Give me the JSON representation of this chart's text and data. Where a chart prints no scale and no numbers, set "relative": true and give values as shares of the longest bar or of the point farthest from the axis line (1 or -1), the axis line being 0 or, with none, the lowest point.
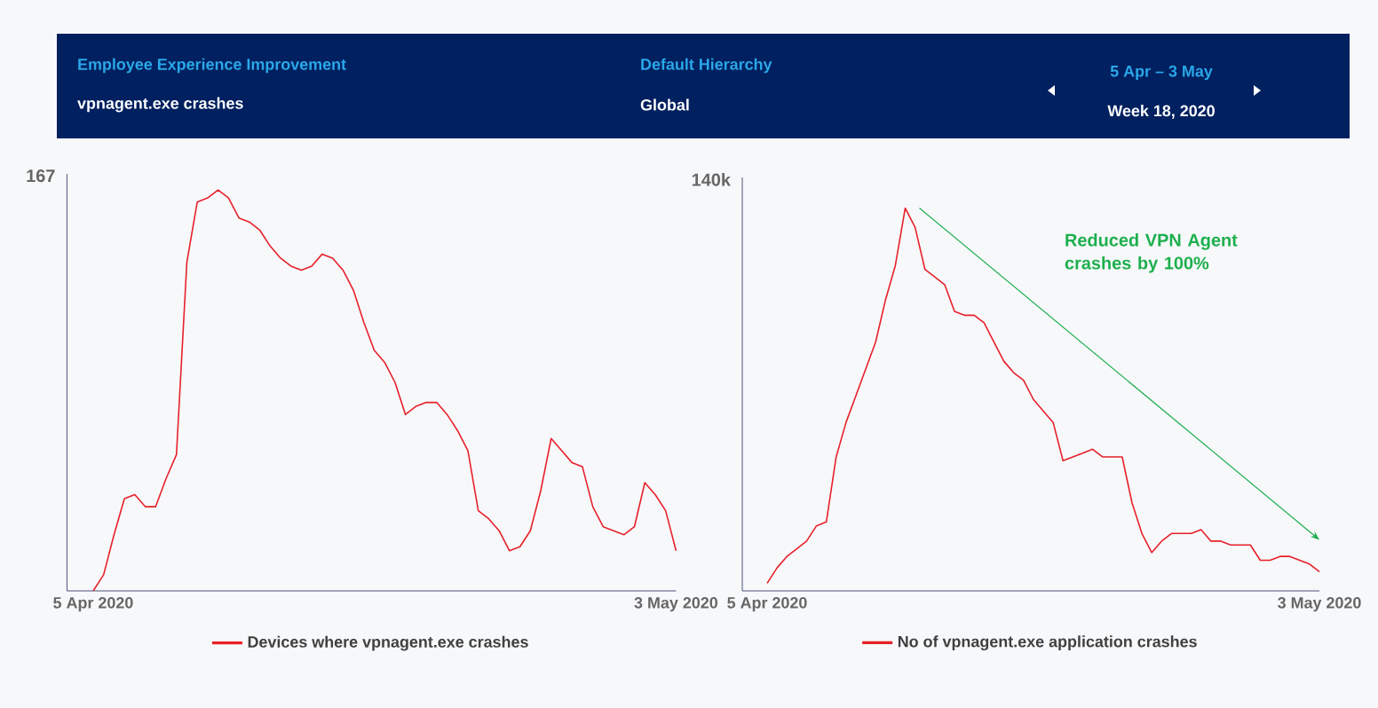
{
  "chart_data": [
    {
      "type": "other",
      "title": "Employee Experience Improvement",
      "subtitle": "vpnagent.exe crashes",
      "annotations": [
        "Default Hierarchy",
        "Global",
        "5 Apr – 3 May",
        "Week 18, 2020"
      ]
    },
    {
      "type": "line",
      "legend": "bottom",
      "relative": true,
      "annotations": [
        "167"
      ],
      "categories": [
        "5 Apr 2020",
        null,
        null,
        null,
        null,
        null,
        null,
        null,
        null,
        null,
        null,
        null,
        null,
        null,
        null,
        null,
        null,
        null,
        null,
        null,
        null,
        null,
        null,
        null,
        null,
        null,
        null,
        null,
        null,
        null,
        null,
        null,
        null,
        null,
        null,
        null,
        null,
        null,
        null,
        null,
        null,
        null,
        null,
        null,
        null,
        null,
        null,
        null,
        null,
        null,
        null,
        null,
        null,
        null,
        null,
        null,
        "3 May 2020"
      ],
      "series": [
        {
          "name": "Devices where vpnagent.exe crashes",
          "color": "#e8202a",
          "values": [
            0,
            0.04,
            0.14,
            0.23,
            0.24,
            0.21,
            0.21,
            0.28,
            0.34,
            0.82,
            0.97,
            0.98,
            1.0,
            0.98,
            0.93,
            0.92,
            0.9,
            0.86,
            0.83,
            0.81,
            0.8,
            0.81,
            0.84,
            0.83,
            0.8,
            0.75,
            0.67,
            0.6,
            0.57,
            0.52,
            0.44,
            0.46,
            0.47,
            0.47,
            0.44,
            0.4,
            0.35,
            0.2,
            0.18,
            0.15,
            0.1,
            0.11,
            0.15,
            0.25,
            0.38,
            0.35,
            0.32,
            0.31,
            0.21,
            0.16,
            0.15,
            0.14,
            0.16,
            0.27,
            0.24,
            0.2,
            0.1
          ]
        }
      ]
    },
    {
      "type": "line",
      "legend": "bottom",
      "relative": true,
      "annotations": [
        "140k",
        "Reduced VPN Agent crashes by 100%"
      ],
      "categories": [
        "5 Apr 2020",
        null,
        null,
        null,
        null,
        null,
        null,
        null,
        null,
        null,
        null,
        null,
        null,
        null,
        null,
        null,
        null,
        null,
        null,
        null,
        null,
        null,
        null,
        null,
        null,
        null,
        null,
        null,
        null,
        null,
        null,
        null,
        null,
        null,
        null,
        null,
        null,
        null,
        null,
        null,
        null,
        null,
        null,
        null,
        null,
        null,
        null,
        null,
        null,
        null,
        null,
        null,
        null,
        null,
        null,
        null,
        "3 May 2020"
      ],
      "series": [
        {
          "name": "No of vpnagent.exe application crashes",
          "color": "#e8202a",
          "values": [
            0.02,
            0.06,
            0.09,
            0.11,
            0.13,
            0.17,
            0.18,
            0.35,
            0.44,
            0.51,
            0.58,
            0.65,
            0.76,
            0.85,
            1.0,
            0.95,
            0.84,
            0.82,
            0.8,
            0.73,
            0.72,
            0.72,
            0.7,
            0.65,
            0.6,
            0.57,
            0.55,
            0.5,
            0.47,
            0.44,
            0.34,
            0.35,
            0.36,
            0.37,
            0.35,
            0.35,
            0.35,
            0.23,
            0.15,
            0.1,
            0.13,
            0.15,
            0.15,
            0.15,
            0.16,
            0.13,
            0.13,
            0.12,
            0.12,
            0.12,
            0.08,
            0.08,
            0.09,
            0.09,
            0.08,
            0.07,
            0.05
          ]
        }
      ]
    }
  ]
}
